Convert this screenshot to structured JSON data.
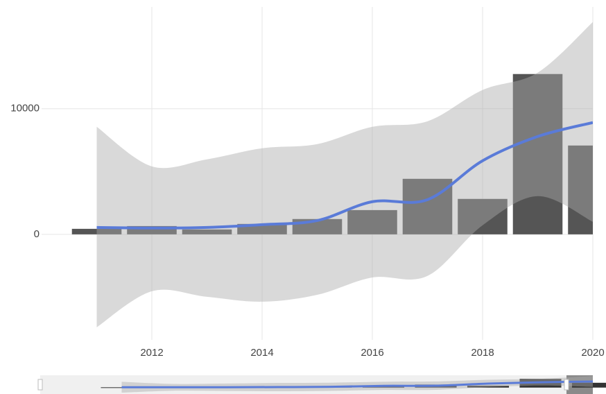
{
  "chart_data": {
    "type": "bar",
    "x": [
      2011,
      2012,
      2013,
      2014,
      2015,
      2016,
      2017,
      2018,
      2019,
      2020
    ],
    "values": [
      440,
      660,
      390,
      830,
      1220,
      1930,
      4420,
      2820,
      12760,
      7070
    ],
    "color": "#555555",
    "trend": [
      550,
      500,
      550,
      770,
      1100,
      2600,
      2760,
      5860,
      7790,
      8900
    ],
    "trend_color": "#5a7bd8",
    "band_upper": [
      8560,
      5410,
      5970,
      6850,
      7180,
      8560,
      9000,
      11490,
      12870,
      16900
    ],
    "band_lower": [
      -7400,
      -4530,
      -4970,
      -5360,
      -4810,
      -3430,
      -3310,
      720,
      3040,
      1000
    ],
    "band_color": "#aaaaaa",
    "xlim": [
      2010,
      2020
    ],
    "xticks": [
      2012,
      2014,
      2016,
      2018,
      2020
    ],
    "ylim": [
      -8400,
      18100
    ],
    "yticks": [
      0,
      10000
    ],
    "grid": true
  }
}
